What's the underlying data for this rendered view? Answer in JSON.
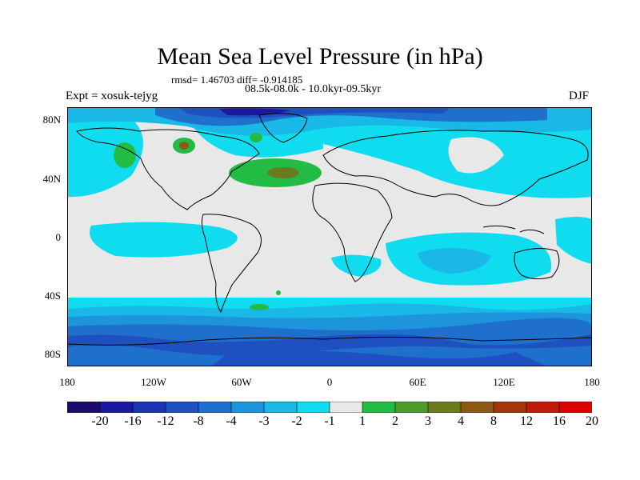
{
  "title": "Mean Sea Level Pressure (in hPa)",
  "stats": "rmsd= 1.46703 diff= -0.914185",
  "period": "08.5k-08.0k - 10.0kyr-09.5kyr",
  "experiment": "Expt = xosuk-tejyg",
  "season": "DJF",
  "axes": {
    "y_ticks": [
      "80N",
      "40N",
      "0",
      "40S",
      "80S"
    ],
    "x_ticks": [
      "180",
      "120W",
      "60W",
      "0",
      "60E",
      "120E",
      "180"
    ]
  },
  "colorbar": {
    "colors": [
      "#1c0b6b",
      "#1a1a9e",
      "#1c34b0",
      "#1e50bf",
      "#1f6fcd",
      "#1e95db",
      "#1ab8e6",
      "#10dcef",
      "#e8e8e8",
      "#22bb44",
      "#4e9a2a",
      "#6b7a1e",
      "#8b5a14",
      "#a5360c",
      "#c11a08",
      "#dd0000"
    ],
    "labels": [
      "-20",
      "-16",
      "-12",
      "-8",
      "-4",
      "-3",
      "-2",
      "-1",
      "1",
      "2",
      "3",
      "4",
      "8",
      "12",
      "16",
      "20"
    ]
  }
}
